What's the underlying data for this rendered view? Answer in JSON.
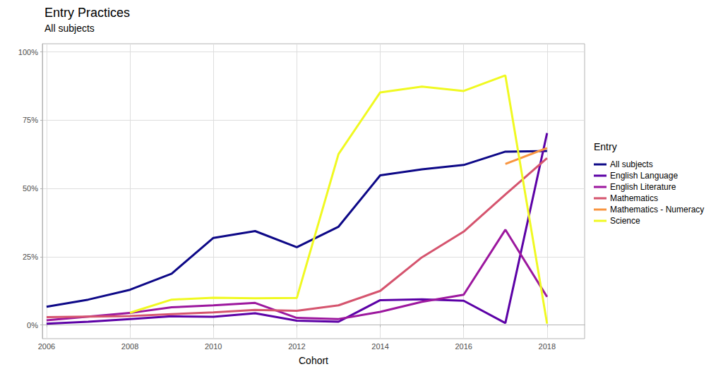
{
  "chart_data": {
    "type": "line",
    "title": "Entry Practices",
    "subtitle": "All subjects",
    "x_label": "Cohort",
    "legend_title": "Entry",
    "legend": "right",
    "grid": true,
    "x": [
      2006,
      2007,
      2008,
      2009,
      2010,
      2011,
      2012,
      2013,
      2014,
      2015,
      2016,
      2017,
      2018
    ],
    "xlim": [
      2005.9,
      2018.9
    ],
    "xticks": [
      2006,
      2008,
      2010,
      2012,
      2014,
      2016,
      2018
    ],
    "ylim": [
      -5,
      103
    ],
    "yticks": [
      {
        "value": 0,
        "label": "0%"
      },
      {
        "value": 25,
        "label": "25%"
      },
      {
        "value": 50,
        "label": "50%"
      },
      {
        "value": 75,
        "label": "75%"
      },
      {
        "value": 100,
        "label": "100%"
      }
    ],
    "series": [
      {
        "name": "All subjects",
        "color": "#0d0887",
        "values": [
          6.7,
          9.3,
          12.9,
          18.8,
          31.9,
          34.4,
          28.5,
          36.0,
          54.8,
          57.0,
          58.6,
          63.5,
          63.7
        ]
      },
      {
        "name": "English Language",
        "color": "#5c01a6",
        "values": [
          0.5,
          1.2,
          2.2,
          3.2,
          3.0,
          4.3,
          1.6,
          1.2,
          9.1,
          9.4,
          8.9,
          0.7,
          70.3
        ]
      },
      {
        "name": "English Literature",
        "color": "#9c179e",
        "values": [
          1.7,
          3.1,
          4.4,
          6.5,
          7.2,
          8.1,
          2.6,
          2.2,
          4.8,
          8.5,
          11.1,
          34.9,
          10.3
        ]
      },
      {
        "name": "Mathematics",
        "color": "#d5546e",
        "values": [
          2.9,
          3.1,
          3.3,
          4.0,
          4.6,
          5.5,
          5.2,
          7.2,
          12.5,
          24.8,
          34.2,
          47.8,
          61.1
        ]
      },
      {
        "name": "Mathematics - Numeracy",
        "color": "#f89540",
        "values": [
          null,
          null,
          null,
          null,
          null,
          null,
          null,
          null,
          null,
          null,
          null,
          59.0,
          64.8
        ]
      },
      {
        "name": "Science",
        "color": "#f0f921",
        "values": [
          null,
          null,
          4.5,
          9.3,
          10.0,
          9.8,
          9.9,
          62.6,
          85.2,
          87.3,
          85.7,
          91.4,
          0.5
        ]
      }
    ]
  }
}
